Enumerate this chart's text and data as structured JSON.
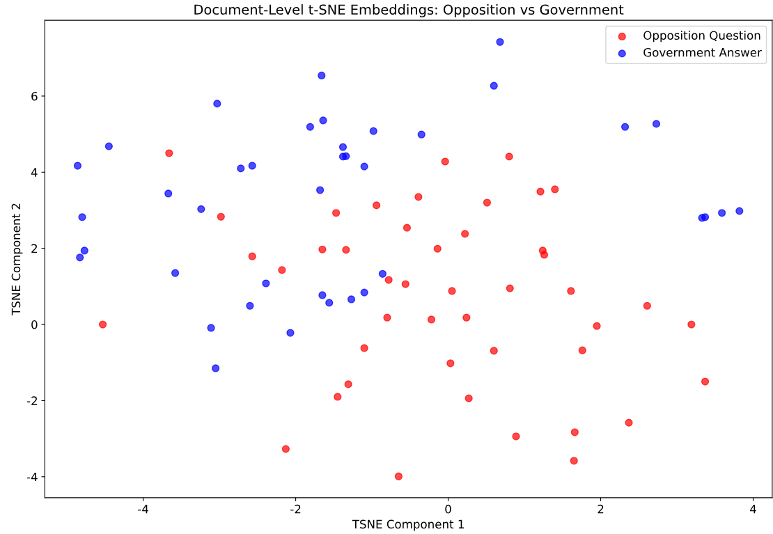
{
  "chart_data": {
    "type": "scatter",
    "title": "Document-Level t-SNE Embeddings: Opposition vs Government",
    "xlabel": "TSNE Component 1",
    "ylabel": "TSNE Component 2",
    "xlim": [
      -5.29,
      4.25
    ],
    "ylim": [
      -4.55,
      7.99
    ],
    "xticks": [
      -4,
      -2,
      0,
      2,
      4
    ],
    "yticks": [
      -4,
      -2,
      0,
      2,
      4,
      6
    ],
    "grid": false,
    "legend": "top right",
    "marker": "circle",
    "series": [
      {
        "name": "Opposition Question",
        "color": "#ff0000",
        "x": [
          -3.66,
          -2.98,
          -4.53,
          -2.57,
          -2.18,
          -1.47,
          -1.65,
          -1.34,
          -0.94,
          -0.39,
          -0.54,
          -0.04,
          -0.14,
          -0.78,
          -0.56,
          -0.8,
          -0.22,
          0.05,
          0.24,
          0.22,
          0.51,
          0.8,
          0.81,
          1.21,
          1.4,
          1.24,
          1.26,
          1.61,
          1.95,
          1.76,
          2.61,
          3.19,
          3.37,
          -1.1,
          -1.31,
          -1.45,
          0.03,
          0.6,
          0.27,
          0.89,
          1.66,
          2.37,
          1.65,
          -0.65,
          -2.13
        ],
        "values": [
          4.5,
          2.83,
          0.0,
          1.79,
          1.43,
          2.93,
          1.97,
          1.96,
          3.13,
          3.35,
          2.54,
          4.28,
          1.99,
          1.17,
          1.06,
          0.18,
          0.13,
          0.88,
          0.18,
          2.38,
          3.2,
          4.41,
          0.95,
          3.49,
          3.55,
          1.94,
          1.83,
          0.88,
          -0.04,
          -0.68,
          0.49,
          0.0,
          -1.5,
          -0.62,
          -1.57,
          -1.9,
          -1.02,
          -0.69,
          -1.94,
          -2.94,
          -2.83,
          -2.58,
          -3.58,
          -3.99,
          -3.27
        ]
      },
      {
        "name": "Government Answer",
        "color": "#0000ff",
        "x": [
          -4.86,
          -4.45,
          -4.8,
          -4.77,
          -4.83,
          -3.67,
          -3.58,
          -3.24,
          -3.03,
          -2.72,
          -2.57,
          -3.11,
          -3.05,
          -2.39,
          -2.6,
          -2.07,
          -1.66,
          -1.64,
          -1.81,
          -1.38,
          -1.38,
          -1.34,
          -1.68,
          -1.1,
          -0.98,
          -0.35,
          -1.65,
          -1.56,
          -1.27,
          -1.1,
          -0.86,
          0.68,
          0.6,
          2.32,
          2.73,
          3.33,
          3.37,
          3.59,
          3.82
        ],
        "values": [
          4.17,
          4.68,
          2.82,
          1.94,
          1.76,
          3.44,
          1.35,
          3.03,
          5.8,
          4.1,
          4.17,
          -0.09,
          -1.15,
          1.08,
          0.49,
          -0.22,
          6.54,
          5.36,
          5.19,
          4.66,
          4.41,
          4.42,
          3.53,
          4.15,
          5.08,
          4.99,
          0.77,
          0.57,
          0.66,
          0.84,
          1.33,
          7.42,
          6.27,
          5.19,
          5.27,
          2.8,
          2.82,
          2.93,
          2.98
        ]
      }
    ]
  }
}
